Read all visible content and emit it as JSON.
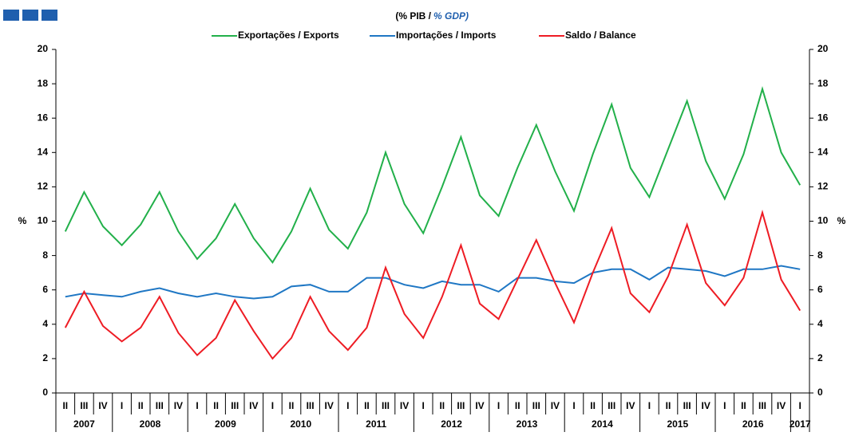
{
  "chart_data": {
    "type": "line",
    "subtitle": "(% PIB /",
    "subtitle_en": "% GDP)",
    "y_label": "%",
    "y2_label": "%",
    "categories": [
      "II",
      "III",
      "IV",
      "I",
      "II",
      "III",
      "IV",
      "I",
      "II",
      "III",
      "IV",
      "I",
      "II",
      "III",
      "IV",
      "I",
      "II",
      "III",
      "IV",
      "I",
      "II",
      "III",
      "IV",
      "I",
      "II",
      "III",
      "IV",
      "I",
      "II",
      "III",
      "IV",
      "I",
      "II",
      "III",
      "IV",
      "I",
      "II",
      "III",
      "IV",
      "I"
    ],
    "years": [
      "2007",
      "2008",
      "2009",
      "2010",
      "2011",
      "2012",
      "2013",
      "2014",
      "2015",
      "2016",
      "2017"
    ],
    "series": [
      {
        "name": "Exportações / Exports",
        "color": "#22b04a",
        "values": [
          9.4,
          11.7,
          9.7,
          8.6,
          9.8,
          11.7,
          9.4,
          7.8,
          9.0,
          11.0,
          9.0,
          7.6,
          9.4,
          11.9,
          9.5,
          8.4,
          10.5,
          14.0,
          11.0,
          9.3,
          12.0,
          14.9,
          11.5,
          10.3,
          13.1,
          15.6,
          12.9,
          10.6,
          13.9,
          16.8,
          13.1,
          11.4,
          14.2,
          17.0,
          13.5,
          11.3,
          13.9,
          17.7,
          14.0,
          12.1
        ]
      },
      {
        "name": "Importações / Imports",
        "color": "#1f77c4",
        "values": [
          5.6,
          5.8,
          5.7,
          5.6,
          5.9,
          6.1,
          5.8,
          5.6,
          5.8,
          5.6,
          5.5,
          5.6,
          6.2,
          6.3,
          5.9,
          5.9,
          6.7,
          6.7,
          6.3,
          6.1,
          6.5,
          6.3,
          6.3,
          5.9,
          6.7,
          6.7,
          6.5,
          6.4,
          7.0,
          7.2,
          7.2,
          6.6,
          7.3,
          7.2,
          7.1,
          6.8,
          7.2,
          7.2,
          7.4,
          7.2
        ]
      },
      {
        "name": "Saldo / Balance",
        "color": "#ee1c24",
        "values": [
          3.8,
          5.9,
          3.9,
          3.0,
          3.8,
          5.6,
          3.5,
          2.2,
          3.2,
          5.4,
          3.6,
          2.0,
          3.2,
          5.6,
          3.6,
          2.5,
          3.8,
          7.3,
          4.6,
          3.2,
          5.6,
          8.6,
          5.2,
          4.3,
          6.6,
          8.9,
          6.4,
          4.1,
          7.0,
          9.6,
          5.8,
          4.7,
          6.8,
          9.8,
          6.4,
          5.1,
          6.7,
          10.5,
          6.6,
          4.8
        ]
      }
    ],
    "ylim": [
      0,
      20
    ],
    "yticks": [
      0,
      2,
      4,
      6,
      8,
      10,
      12,
      14,
      16,
      18,
      20
    ],
    "y2lim": [
      0,
      20
    ],
    "y2ticks": [
      0,
      2,
      4,
      6,
      8,
      10,
      12,
      14,
      16,
      18,
      20
    ]
  }
}
